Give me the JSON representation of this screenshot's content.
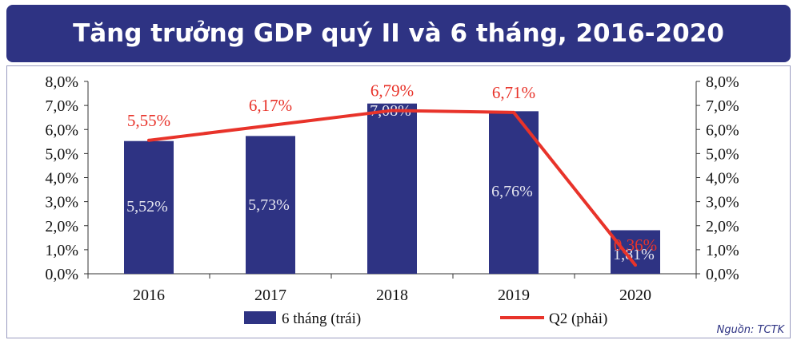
{
  "title": "Tăng trưởng GDP quý II và 6 tháng, 2016-2020",
  "source": "Nguồn: TCTK",
  "chart_data": {
    "type": "bar",
    "categories": [
      "2016",
      "2017",
      "2018",
      "2019",
      "2020"
    ],
    "series": [
      {
        "name": "6 tháng (trái)",
        "type": "bar",
        "axis": "left",
        "values": [
          5.52,
          5.73,
          7.08,
          6.76,
          1.81
        ],
        "labels": [
          "5,52%",
          "5,73%",
          "7,08%",
          "6,76%",
          "1,81%"
        ],
        "color": "#2e3383"
      },
      {
        "name": "Q2 (phải)",
        "type": "line",
        "axis": "right",
        "values": [
          5.55,
          6.17,
          6.79,
          6.71,
          0.36
        ],
        "labels": [
          "5,55%",
          "6,17%",
          "6,79%",
          "6,71%",
          "0,36%"
        ],
        "color": "#e8332a"
      }
    ],
    "y_ticks": [
      "0,0%",
      "1,0%",
      "2,0%",
      "3,0%",
      "4,0%",
      "5,0%",
      "6,0%",
      "7,0%",
      "8,0%"
    ],
    "ylim": [
      0,
      8
    ],
    "legend_position": "bottom"
  }
}
